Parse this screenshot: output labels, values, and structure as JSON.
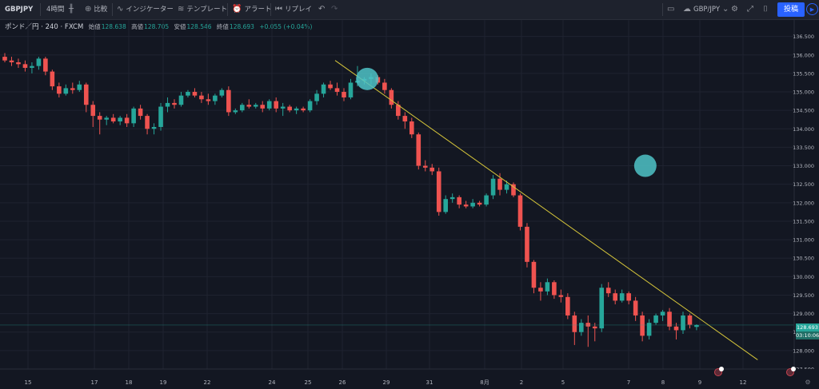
{
  "toolbar": {
    "symbol": "GBPJPY",
    "interval": "4時間",
    "compare": "比較",
    "indicators": "インジケーター",
    "templates": "テンプレート",
    "alert": "アラート",
    "replay": "リプレイ",
    "layout_name": "GBP/JPY",
    "publish": "投稿"
  },
  "legend": {
    "title": "ポンド／円 · 240 · FXCM",
    "open_label": "始値",
    "open": "128.638",
    "high_label": "高値",
    "high": "128.705",
    "low_label": "安値",
    "low": "128.546",
    "close_label": "終値",
    "close": "128.693",
    "change": "+0.055 (+0.04%)"
  },
  "price_tag": {
    "price": "128.693",
    "countdown": "03:10:06"
  },
  "colors": {
    "background": "#131722",
    "up": "#26a69a",
    "down": "#ef5350",
    "grid": "#1f2330",
    "trendline": "#d4c43a",
    "marker": "#4fc3c7"
  },
  "chart_data": {
    "type": "candlestick",
    "y_range": [
      127.5,
      136.6
    ],
    "y_ticks": [
      "136.500",
      "136.000",
      "135.500",
      "135.000",
      "134.500",
      "134.000",
      "133.500",
      "133.000",
      "132.500",
      "132.000",
      "131.500",
      "131.000",
      "130.500",
      "130.000",
      "129.500",
      "129.000",
      "128.500",
      "128.000",
      "127.500"
    ],
    "x_ticks": [
      "15",
      "17",
      "18",
      "19",
      "22",
      "24",
      "25",
      "26",
      "29",
      "31",
      "8月",
      "2",
      "5",
      "7",
      "8",
      "9",
      "12"
    ],
    "candles": [
      [
        135.95,
        136.05,
        135.8,
        135.85
      ],
      [
        135.85,
        135.95,
        135.7,
        135.8
      ],
      [
        135.8,
        135.9,
        135.65,
        135.75
      ],
      [
        135.75,
        135.85,
        135.55,
        135.65
      ],
      [
        135.65,
        135.8,
        135.5,
        135.7
      ],
      [
        135.7,
        135.95,
        135.6,
        135.9
      ],
      [
        135.9,
        135.95,
        135.45,
        135.55
      ],
      [
        135.55,
        135.6,
        135.05,
        135.15
      ],
      [
        135.15,
        135.25,
        134.85,
        134.95
      ],
      [
        134.95,
        135.2,
        134.9,
        135.1
      ],
      [
        135.1,
        135.25,
        134.95,
        135.05
      ],
      [
        135.05,
        135.3,
        135.0,
        135.2
      ],
      [
        135.2,
        135.25,
        134.45,
        134.65
      ],
      [
        134.65,
        134.75,
        134.05,
        134.35
      ],
      [
        134.35,
        134.45,
        133.85,
        134.25
      ],
      [
        134.25,
        134.35,
        134.1,
        134.3
      ],
      [
        134.3,
        134.4,
        134.15,
        134.2
      ],
      [
        134.2,
        134.35,
        134.1,
        134.3
      ],
      [
        134.3,
        134.4,
        134.05,
        134.15
      ],
      [
        134.15,
        134.6,
        134.05,
        134.55
      ],
      [
        134.55,
        134.65,
        134.25,
        134.35
      ],
      [
        134.35,
        134.4,
        133.85,
        134.0
      ],
      [
        134.0,
        134.15,
        133.85,
        134.05
      ],
      [
        134.05,
        134.7,
        133.95,
        134.6
      ],
      [
        134.6,
        134.85,
        134.45,
        134.7
      ],
      [
        134.7,
        134.8,
        134.55,
        134.65
      ],
      [
        134.65,
        135.0,
        134.6,
        134.9
      ],
      [
        134.9,
        135.05,
        134.85,
        135.0
      ],
      [
        135.0,
        135.1,
        134.85,
        134.9
      ],
      [
        134.9,
        135.0,
        134.7,
        134.8
      ],
      [
        134.8,
        134.95,
        134.65,
        134.75
      ],
      [
        134.75,
        134.95,
        134.65,
        134.9
      ],
      [
        134.9,
        135.1,
        134.85,
        135.05
      ],
      [
        135.05,
        135.15,
        134.35,
        134.45
      ],
      [
        134.45,
        134.55,
        134.4,
        134.5
      ],
      [
        134.5,
        134.7,
        134.45,
        134.65
      ],
      [
        134.65,
        134.8,
        134.55,
        134.6
      ],
      [
        134.6,
        134.7,
        134.55,
        134.65
      ],
      [
        134.65,
        134.75,
        134.45,
        134.55
      ],
      [
        134.55,
        134.8,
        134.5,
        134.75
      ],
      [
        134.75,
        134.85,
        134.45,
        134.55
      ],
      [
        134.55,
        134.7,
        134.35,
        134.6
      ],
      [
        134.6,
        134.65,
        134.45,
        134.5
      ],
      [
        134.5,
        134.6,
        134.4,
        134.55
      ],
      [
        134.55,
        134.6,
        134.45,
        134.5
      ],
      [
        134.5,
        134.8,
        134.45,
        134.75
      ],
      [
        134.75,
        135.05,
        134.65,
        134.95
      ],
      [
        134.95,
        135.25,
        134.85,
        135.2
      ],
      [
        135.2,
        135.3,
        135.05,
        135.1
      ],
      [
        135.1,
        135.25,
        134.9,
        135.0
      ],
      [
        135.0,
        135.1,
        134.75,
        134.85
      ],
      [
        134.85,
        135.35,
        134.8,
        135.25
      ],
      [
        135.25,
        135.7,
        135.15,
        135.3
      ],
      [
        135.3,
        135.4,
        135.2,
        135.35
      ],
      [
        135.35,
        135.5,
        135.2,
        135.4
      ],
      [
        135.4,
        135.45,
        135.2,
        135.25
      ],
      [
        135.25,
        135.35,
        134.95,
        135.05
      ],
      [
        135.05,
        135.1,
        134.55,
        134.65
      ],
      [
        134.65,
        134.75,
        134.25,
        134.35
      ],
      [
        134.35,
        134.45,
        134.0,
        134.2
      ],
      [
        134.2,
        134.3,
        133.75,
        133.85
      ],
      [
        133.85,
        133.9,
        132.9,
        133.0
      ],
      [
        133.0,
        133.15,
        132.85,
        132.95
      ],
      [
        132.95,
        133.05,
        132.75,
        132.85
      ],
      [
        132.85,
        132.95,
        131.65,
        131.75
      ],
      [
        131.75,
        132.2,
        131.7,
        132.1
      ],
      [
        132.1,
        132.25,
        132.0,
        132.15
      ],
      [
        132.15,
        132.2,
        131.85,
        131.95
      ],
      [
        131.95,
        132.05,
        131.85,
        131.9
      ],
      [
        131.9,
        132.1,
        131.85,
        132.0
      ],
      [
        132.0,
        132.05,
        131.9,
        131.95
      ],
      [
        131.95,
        132.25,
        131.9,
        132.2
      ],
      [
        132.2,
        132.75,
        132.1,
        132.65
      ],
      [
        132.65,
        132.8,
        132.2,
        132.35
      ],
      [
        132.35,
        132.6,
        132.25,
        132.5
      ],
      [
        132.5,
        132.55,
        132.15,
        132.2
      ],
      [
        132.2,
        132.25,
        131.25,
        131.35
      ],
      [
        131.35,
        131.45,
        130.25,
        130.4
      ],
      [
        130.4,
        130.45,
        129.55,
        129.7
      ],
      [
        129.7,
        129.85,
        129.35,
        129.6
      ],
      [
        129.6,
        129.95,
        129.5,
        129.85
      ],
      [
        129.85,
        129.9,
        129.4,
        129.5
      ],
      [
        129.5,
        129.65,
        129.3,
        129.45
      ],
      [
        129.45,
        129.55,
        128.85,
        128.95
      ],
      [
        128.95,
        129.05,
        128.15,
        128.5
      ],
      [
        128.5,
        128.85,
        128.4,
        128.75
      ],
      [
        128.75,
        128.95,
        128.1,
        128.65
      ],
      [
        128.65,
        128.75,
        128.25,
        128.6
      ],
      [
        128.6,
        129.8,
        128.5,
        129.7
      ],
      [
        129.7,
        129.85,
        129.45,
        129.55
      ],
      [
        129.55,
        129.65,
        129.25,
        129.35
      ],
      [
        129.35,
        129.65,
        129.3,
        129.55
      ],
      [
        129.55,
        129.6,
        129.25,
        129.35
      ],
      [
        129.35,
        129.45,
        128.8,
        128.95
      ],
      [
        128.95,
        129.05,
        128.25,
        128.4
      ],
      [
        128.4,
        128.85,
        128.3,
        128.75
      ],
      [
        128.75,
        129.0,
        128.7,
        128.95
      ],
      [
        128.95,
        129.1,
        128.8,
        129.05
      ],
      [
        129.05,
        129.15,
        128.55,
        128.65
      ],
      [
        128.65,
        128.75,
        128.3,
        128.55
      ],
      [
        128.55,
        129.05,
        128.45,
        128.95
      ],
      [
        128.95,
        129.0,
        128.6,
        128.7
      ],
      [
        128.64,
        128.71,
        128.55,
        128.69
      ]
    ],
    "trendline": [
      [
        135.85,
        0
      ],
      [
        127.75,
        111
      ]
    ],
    "touch_points": [
      [
        135.35,
        17
      ],
      [
        133.0,
        58
      ]
    ]
  }
}
